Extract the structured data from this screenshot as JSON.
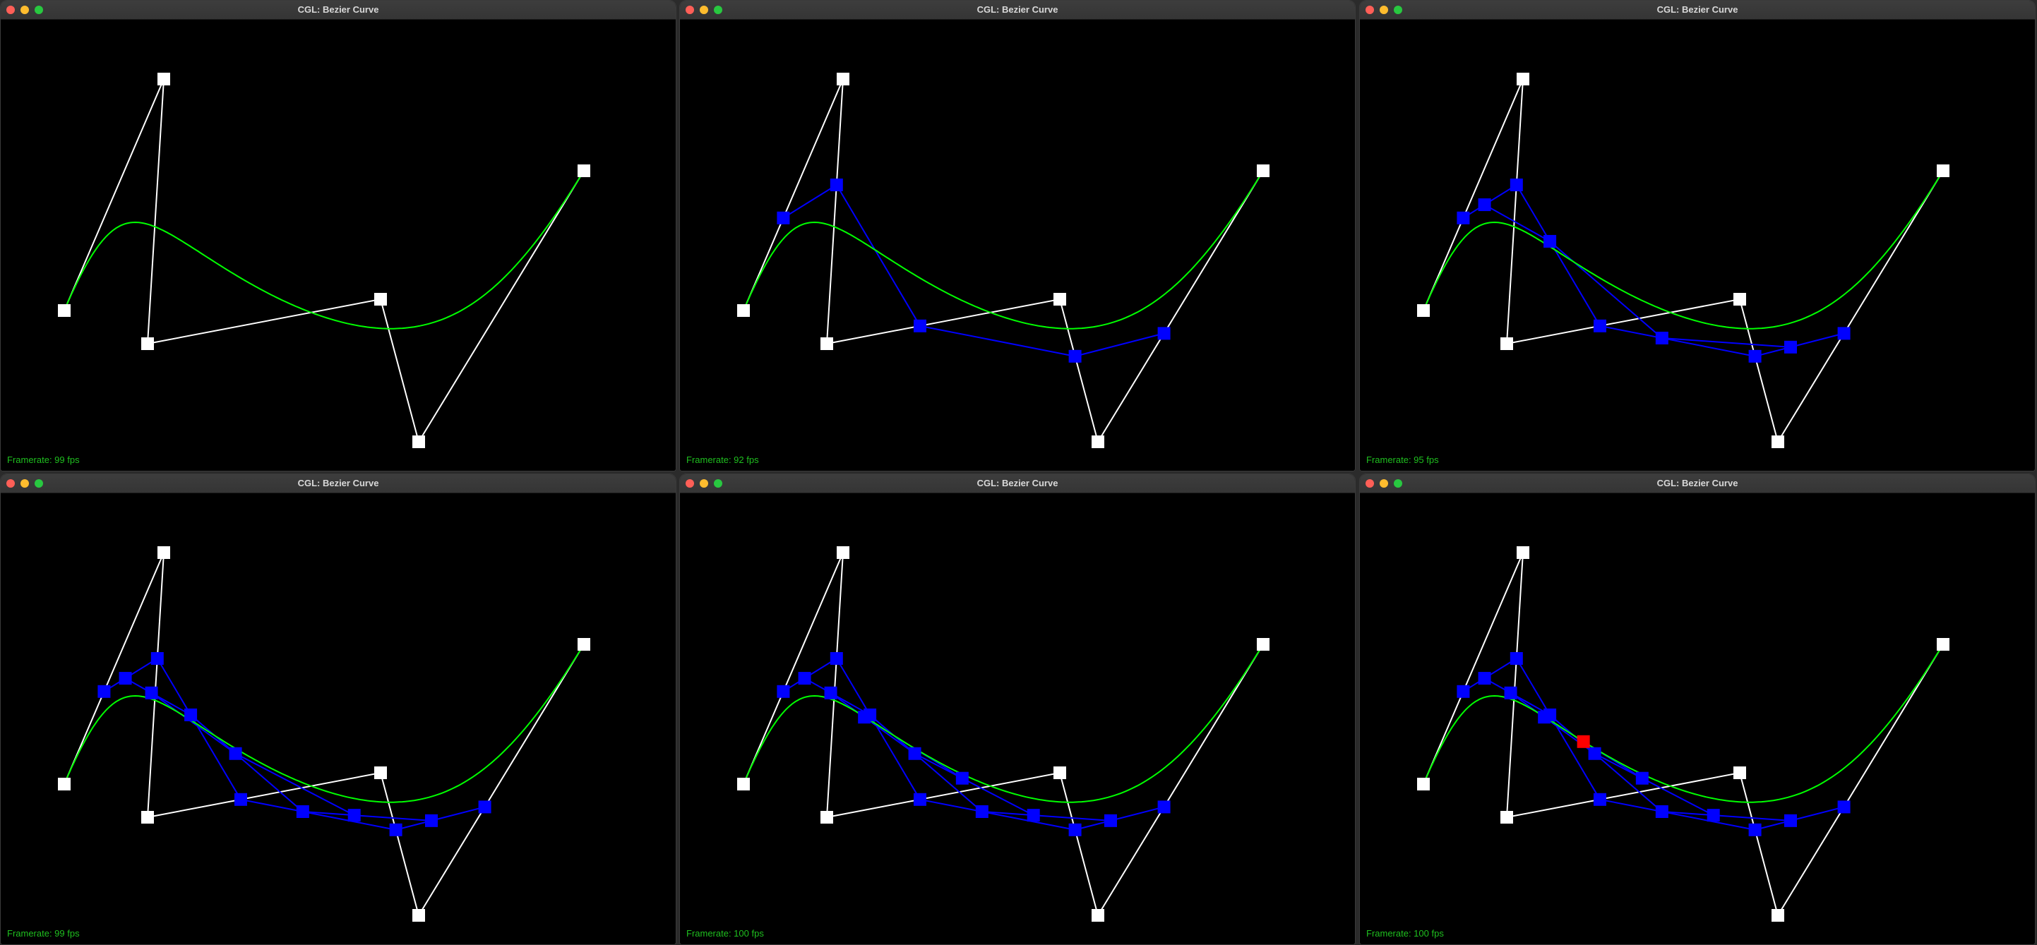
{
  "windows": [
    {
      "title": "CGL: Bezier Curve",
      "framerate": "Framerate: 99 fps",
      "level": 0
    },
    {
      "title": "CGL: Bezier Curve",
      "framerate": "Framerate: 92 fps",
      "level": 1
    },
    {
      "title": "CGL: Bezier Curve",
      "framerate": "Framerate: 95 fps",
      "level": 2
    },
    {
      "title": "CGL: Bezier Curve",
      "framerate": "Framerate: 99 fps",
      "level": 3
    },
    {
      "title": "CGL: Bezier Curve",
      "framerate": "Framerate: 100 fps",
      "level": 4
    },
    {
      "title": "CGL: Bezier Curve",
      "framerate": "Framerate: 100 fps",
      "level": 5
    }
  ],
  "control_points_count": 6,
  "t_parameter_approx": 0.4,
  "colors": {
    "control_polygon": "#ffffff",
    "intermediate_polygon": "#0000ff",
    "bezier_curve": "#00ff00",
    "evaluated_point": "#ff0000",
    "background": "#000000",
    "framerate_text": "#1fbf1f"
  },
  "icons": [
    "close-button-icon",
    "minimize-button-icon",
    "maximize-button-icon"
  ]
}
